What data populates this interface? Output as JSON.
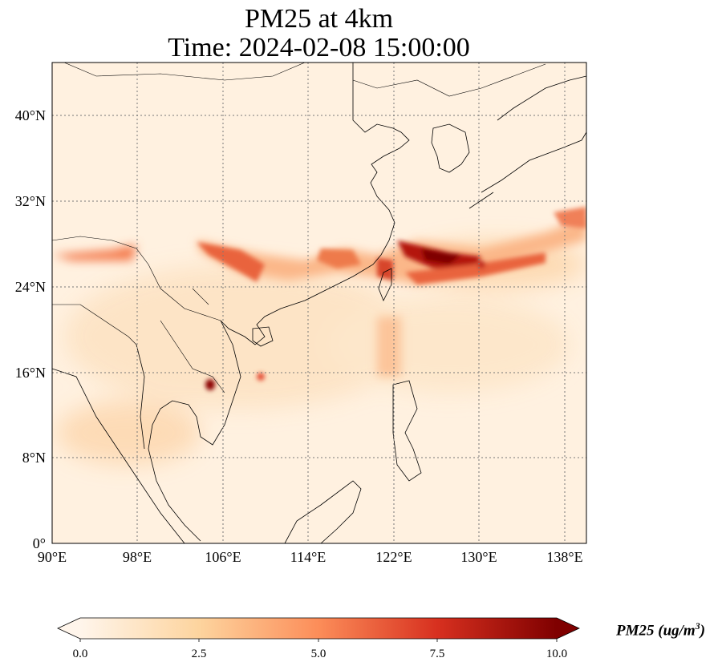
{
  "title_line1": "PM25 at 4km",
  "title_line2": "Time: 2024-02-08 15:00:00",
  "colorbar": {
    "label_text": "PM25 (ug/m",
    "label_sup": "3",
    "label_close": ")",
    "ticks": [
      "0.0",
      "2.5",
      "5.0",
      "7.5",
      "10.0"
    ],
    "colors": [
      "#fff5eb",
      "#fdd0a2",
      "#fd8d3c",
      "#d94801",
      "#7f0000"
    ]
  },
  "map": {
    "lon_ticks": [
      "90°E",
      "98°E",
      "106°E",
      "114°E",
      "122°E",
      "130°E",
      "138°E"
    ],
    "lat_ticks": [
      "0°",
      "8°N",
      "16°N",
      "24°N",
      "32°N",
      "40°N"
    ],
    "colormap": "OrRd"
  }
}
